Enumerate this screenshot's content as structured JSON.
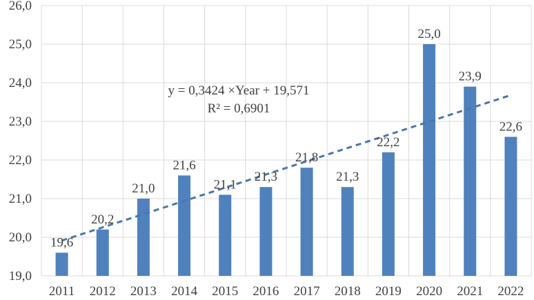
{
  "chart_data": {
    "type": "bar",
    "categories": [
      "2011",
      "2012",
      "2013",
      "2014",
      "2015",
      "2016",
      "2017",
      "2018",
      "2019",
      "2020",
      "2021",
      "2022"
    ],
    "values": [
      19.6,
      20.2,
      21.0,
      21.6,
      21.1,
      21.3,
      21.8,
      21.3,
      22.2,
      25.0,
      23.9,
      22.6
    ],
    "data_labels": [
      "19,6",
      "20,2",
      "21,0",
      "21,6",
      "21,1",
      "21,3",
      "21,8",
      "21,3",
      "22,2",
      "25,0",
      "23,9",
      "22,6"
    ],
    "y_ticks": [
      19,
      20,
      21,
      22,
      23,
      24,
      25,
      26
    ],
    "y_tick_labels": [
      "19,0",
      "20,0",
      "21,0",
      "22,0",
      "23,0",
      "24,0",
      "25,0",
      "26,0"
    ],
    "ylim": [
      19,
      26
    ],
    "grid": true,
    "bar_color": "#4f81bd",
    "trendline": {
      "type": "linear",
      "style": "dashed",
      "color": "#4a76a8",
      "slope": 0.3424,
      "intercept": 19.571,
      "equation": "y = 0,3424 ×Year + 19,571",
      "r_squared": "R² = 0,6901"
    },
    "title": "",
    "xlabel": "",
    "ylabel": ""
  }
}
